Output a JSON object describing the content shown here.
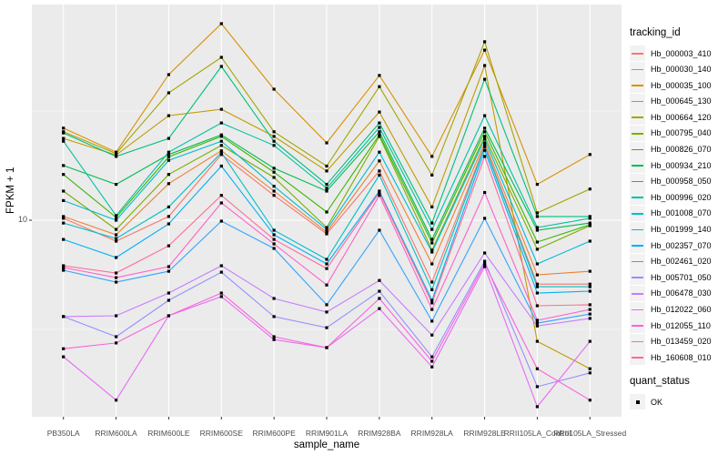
{
  "chart_data": {
    "type": "line",
    "title": "",
    "xlabel": "sample_name",
    "ylabel": "FPKM + 1",
    "y_scale": "log10",
    "y_tick_label": "10",
    "y_tick_value": 10,
    "ylim": [
      1.0,
      97.0
    ],
    "grid": "on",
    "panel_bg": "#EBEBEB",
    "grid_color": "#FFFFFF",
    "axis_text_color": "#4D4D4D",
    "point_shape": "filled-square",
    "point_color": "#000000",
    "legend_position": "right",
    "legend_title": "tracking_id",
    "legend2_title": "quant_status",
    "legend2_items": [
      "OK"
    ],
    "categories": [
      "PB350LA",
      "RRIM600LA",
      "RRIM600LE",
      "RRIM600SE",
      "RRIM600PE",
      "RRIM901LA",
      "RRIM928BA",
      "RRIM928LA",
      "RRIM928LE",
      "RRII105LA_Control",
      "RRII105LA_Stressed"
    ],
    "series": [
      {
        "name": "Hb_000003_410",
        "color": "#F8766D",
        "values": [
          10.2,
          8.02,
          10.4,
          20.0,
          13.0,
          8.66,
          16.8,
          5.21,
          22.0,
          5.1,
          5.1
        ]
      },
      {
        "name": "Hb_000030_140",
        "color": "#EA8331",
        "values": [
          10.4,
          8.58,
          14.7,
          20.8,
          13.6,
          8.83,
          18.7,
          6.31,
          22.6,
          5.62,
          5.84
        ]
      },
      {
        "name": "Hb_000035_100",
        "color": "#D89000",
        "values": [
          26.4,
          20.5,
          46.4,
          79.4,
          39.8,
          22.6,
          46.0,
          19.6,
          60.1,
          14.6,
          20.0
        ]
      },
      {
        "name": "Hb_000645_130",
        "color": "#C09B00",
        "values": [
          23.7,
          19.9,
          30.1,
          32.2,
          24.2,
          16.8,
          31.3,
          11.5,
          51.1,
          2.79,
          2.09
        ]
      },
      {
        "name": "Hb_000664_120",
        "color": "#A3A500",
        "values": [
          25.4,
          20.2,
          38.3,
          55.7,
          25.4,
          17.7,
          40.9,
          16.1,
          65.6,
          10.8,
          13.9
        ]
      },
      {
        "name": "Hb_000795_040",
        "color": "#7CAE00",
        "values": [
          13.6,
          9.08,
          16.2,
          22.0,
          15.7,
          9.26,
          24.2,
          7.29,
          24.2,
          7.36,
          9.44
        ]
      },
      {
        "name": "Hb_000826_070",
        "color": "#39B600",
        "values": [
          16.2,
          10.3,
          19.5,
          24.2,
          16.6,
          10.9,
          24.6,
          7.87,
          25.4,
          7.94,
          9.53
        ]
      },
      {
        "name": "Hb_000934_210",
        "color": "#00BB4E",
        "values": [
          17.8,
          14.6,
          20.0,
          24.6,
          17.3,
          13.6,
          25.4,
          8.17,
          26.4,
          9.0,
          9.71
        ]
      },
      {
        "name": "Hb_000958_050",
        "color": "#00BF7D",
        "values": [
          25.1,
          19.6,
          23.7,
          50.6,
          23.0,
          14.6,
          27.9,
          9.71,
          44.2,
          10.4,
          10.4
        ]
      },
      {
        "name": "Hb_000996_020",
        "color": "#00C1A3",
        "values": [
          23.0,
          10.5,
          20.5,
          27.9,
          22.0,
          14.0,
          26.6,
          9.08,
          30.1,
          9.26,
          10.2
        ]
      },
      {
        "name": "Hb_001008_070",
        "color": "#00BFC4",
        "values": [
          9.71,
          8.25,
          11.5,
          20.4,
          9.0,
          6.62,
          16.1,
          4.81,
          21.7,
          4.96,
          4.96
        ]
      },
      {
        "name": "Hb_001999_140",
        "color": "#00BBDA",
        "values": [
          12.3,
          10.0,
          18.8,
          23.0,
          14.3,
          9.08,
          20.5,
          7.15,
          23.5,
          6.31,
          8.02
        ]
      },
      {
        "name": "Hb_002357_070",
        "color": "#00B0F6",
        "values": [
          8.17,
          6.75,
          9.62,
          17.7,
          8.58,
          6.31,
          13.6,
          4.3,
          20.9,
          4.64,
          4.73
        ]
      },
      {
        "name": "Hb_002461_020",
        "color": "#35A2FF",
        "values": [
          5.9,
          5.21,
          5.84,
          9.9,
          7.43,
          4.1,
          9.0,
          3.45,
          10.2,
          3.38,
          3.72
        ]
      },
      {
        "name": "Hb_005701_050",
        "color": "#9590FF",
        "values": [
          3.62,
          2.93,
          4.3,
          5.78,
          3.62,
          3.22,
          4.73,
          2.37,
          6.49,
          1.73,
          2.0
        ]
      },
      {
        "name": "Hb_006478_030",
        "color": "#C77CFF",
        "values": [
          3.62,
          3.65,
          4.64,
          6.19,
          4.38,
          3.8,
          5.3,
          2.98,
          7.08,
          3.28,
          3.55
        ]
      },
      {
        "name": "Hb_012022_060",
        "color": "#E76BF3",
        "values": [
          2.37,
          1.5,
          3.65,
          4.47,
          2.84,
          2.61,
          3.94,
          2.13,
          6.13,
          1.4,
          2.79
        ]
      },
      {
        "name": "Hb_012055_110",
        "color": "#FA62DB",
        "values": [
          2.58,
          2.74,
          3.65,
          4.64,
          2.93,
          2.61,
          4.38,
          2.26,
          6.31,
          2.09,
          1.5
        ]
      },
      {
        "name": "Hb_013459_020",
        "color": "#FF61C9",
        "values": [
          6.07,
          5.46,
          6.13,
          12.0,
          7.79,
          5.05,
          13.0,
          3.9,
          13.4,
          3.48,
          3.9
        ]
      },
      {
        "name": "Hb_160608_010",
        "color": "#FF6A98",
        "values": [
          6.19,
          5.73,
          7.64,
          13.0,
          8.17,
          6.01,
          13.4,
          4.18,
          19.6,
          4.06,
          4.1
        ]
      }
    ]
  }
}
